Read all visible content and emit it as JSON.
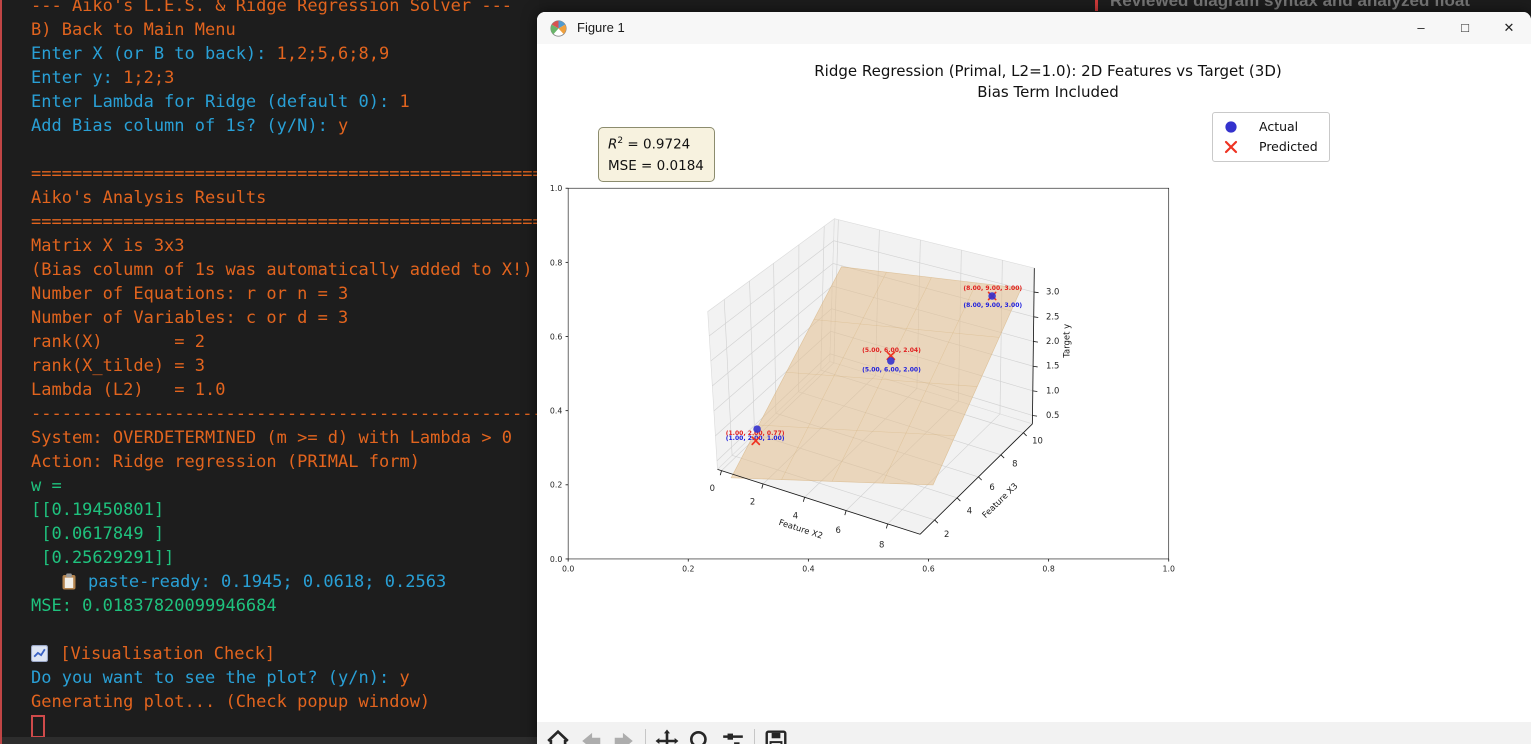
{
  "background": {
    "note": "Reviewed diagram syntax and analyzed float"
  },
  "terminal": {
    "lines": [
      [
        {
          "t": "--- Aiko's L.E.S. & Ridge Regression Solver ---",
          "c": "o"
        }
      ],
      [
        {
          "t": "B) Back to Main Menu",
          "c": "o"
        }
      ],
      [
        {
          "t": "Enter X (or B to back): ",
          "c": "b"
        },
        {
          "t": "1,2;5,6;8,9",
          "c": "o"
        }
      ],
      [
        {
          "t": "Enter y: ",
          "c": "b"
        },
        {
          "t": "1;2;3",
          "c": "o"
        }
      ],
      [
        {
          "t": "Enter Lambda for Ridge (default 0): ",
          "c": "b"
        },
        {
          "t": "1",
          "c": "o"
        }
      ],
      [
        {
          "t": "Add Bias column of 1s? (y/N): ",
          "c": "b"
        },
        {
          "t": "y",
          "c": "o"
        }
      ],
      [],
      [
        {
          "t": "========================================================================",
          "c": "o"
        }
      ],
      [
        {
          "t": "Aiko's Analysis Results",
          "c": "o"
        }
      ],
      [
        {
          "t": "========================================================================",
          "c": "o"
        }
      ],
      [
        {
          "t": "Matrix X is 3x3",
          "c": "o"
        }
      ],
      [
        {
          "t": "(Bias column of 1s was automatically added to X!)",
          "c": "o"
        }
      ],
      [
        {
          "t": "Number of Equations: r or n = 3",
          "c": "o"
        }
      ],
      [
        {
          "t": "Number of Variables: c or d = 3",
          "c": "o"
        }
      ],
      [
        {
          "t": "rank(X)       = 2",
          "c": "o"
        }
      ],
      [
        {
          "t": "rank(X_tilde) = 3",
          "c": "o"
        }
      ],
      [
        {
          "t": "Lambda (L2)   = 1.0",
          "c": "o"
        }
      ],
      [
        {
          "t": "------------------------------------------------------------------------",
          "c": "o"
        }
      ],
      [
        {
          "t": "System: OVERDETERMINED (m >= d) with Lambda > 0",
          "c": "o"
        }
      ],
      [
        {
          "t": "Action: Ridge regression (PRIMAL form)",
          "c": "o"
        }
      ],
      [
        {
          "t": "w =",
          "c": "g"
        }
      ],
      [
        {
          "t": "[[0.19450801]",
          "c": "g"
        }
      ],
      [
        {
          "t": " [0.0617849 ]",
          "c": "g"
        }
      ],
      [
        {
          "t": " [0.25629291]]",
          "c": "g"
        }
      ],
      [
        {
          "t": "   ",
          "c": "b"
        },
        {
          "icon": "clipboard"
        },
        {
          "t": " paste-ready: 0.1945; 0.0618; 0.2563",
          "c": "b"
        }
      ],
      [
        {
          "t": "MSE: 0.01837820099946684",
          "c": "g"
        }
      ],
      [],
      [
        {
          "icon": "chart"
        },
        {
          "t": " [Visualisation Check]",
          "c": "o"
        }
      ],
      [
        {
          "t": "Do you want to see the plot? (y/n): ",
          "c": "b"
        },
        {
          "t": "y",
          "c": "o"
        }
      ],
      [
        {
          "t": "Generating plot... (Check popup window)",
          "c": "o"
        }
      ],
      [
        {
          "cursor": true
        }
      ]
    ]
  },
  "figure": {
    "titlebar": {
      "title": "Figure 1",
      "minimize": "–",
      "maximize": "□",
      "close": "✕"
    },
    "stats": {
      "r2_var": "R",
      "r2_sup": "2",
      "r2_rest": " = 0.9724",
      "mse": "MSE = 0.0184"
    },
    "legend": {
      "actual": "Actual",
      "predicted": "Predicted"
    }
  },
  "chart_data": {
    "type": "scatter",
    "projection": "3d",
    "title": "Ridge Regression (Primal, L2=1.0): 2D Features vs Target (3D)",
    "subtitle": "Bias Term Included",
    "xlabel": "Feature X2",
    "ylabel": "Feature X3",
    "zlabel": "Target y",
    "x_ticks": [
      "0",
      "2",
      "4",
      "6",
      "8"
    ],
    "y_ticks": [
      "2",
      "4",
      "6",
      "8",
      "10"
    ],
    "z_ticks": [
      "0.5",
      "1.0",
      "1.5",
      "2.0",
      "2.5",
      "3.0"
    ],
    "outer_x_ticks": [
      "0.0",
      "0.2",
      "0.4",
      "0.6",
      "0.8",
      "1.0"
    ],
    "outer_y_ticks": [
      "1.0",
      "0.8",
      "0.6",
      "0.4",
      "0.2",
      "0.0"
    ],
    "legend_position": "upper right",
    "grid": true,
    "surface": {
      "kind": "ridge-regression-plane",
      "color": "wheat"
    },
    "series": [
      {
        "name": "Actual",
        "marker": "circle",
        "color": "#3432cd",
        "points": [
          [
            1.0,
            2.0,
            1.0
          ],
          [
            5.0,
            6.0,
            2.0
          ],
          [
            8.0,
            9.0,
            3.0
          ]
        ]
      },
      {
        "name": "Predicted",
        "marker": "x",
        "color": "#ee3322",
        "points": [
          [
            1.0,
            2.0,
            0.77
          ],
          [
            5.0,
            6.0,
            2.04
          ],
          [
            8.0,
            9.0,
            3.0
          ]
        ]
      }
    ],
    "annotations": {
      "predicted": [
        "(1.00, 2.00, 0.77)",
        "(5.00, 6.00, 2.04)",
        "(8.00, 9.00, 3.00)"
      ],
      "actual": [
        "(1.00, 2.00, 1.00)",
        "(5.00, 6.00, 2.00)",
        "(8.00, 9.00, 3.00)"
      ]
    },
    "stats": {
      "r2": 0.9724,
      "mse": 0.0184
    }
  }
}
